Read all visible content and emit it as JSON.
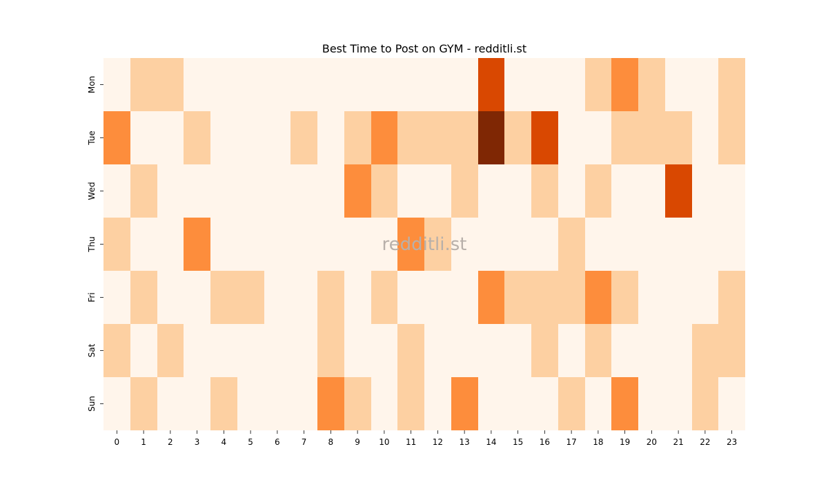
{
  "chart_data": {
    "type": "heatmap",
    "title": "Best Time to Post on GYM - redditli.st",
    "watermark": "redditli.st",
    "xlabel": "",
    "ylabel": "",
    "x": [
      "0",
      "1",
      "2",
      "3",
      "4",
      "5",
      "6",
      "7",
      "8",
      "9",
      "10",
      "11",
      "12",
      "13",
      "14",
      "15",
      "16",
      "17",
      "18",
      "19",
      "20",
      "21",
      "22",
      "23"
    ],
    "y": [
      "Mon",
      "Tue",
      "Wed",
      "Thu",
      "Fri",
      "Sat",
      "Sun"
    ],
    "values": [
      [
        0,
        1,
        1,
        0,
        0,
        0,
        0,
        0,
        0,
        0,
        0,
        0,
        0,
        0,
        3,
        0,
        0,
        0,
        1,
        2,
        1,
        0,
        0,
        1
      ],
      [
        2,
        0,
        0,
        1,
        0,
        0,
        0,
        1,
        0,
        1,
        2,
        1,
        1,
        1,
        4,
        1,
        3,
        0,
        0,
        1,
        1,
        1,
        0,
        1
      ],
      [
        0,
        1,
        0,
        0,
        0,
        0,
        0,
        0,
        0,
        2,
        1,
        0,
        0,
        1,
        0,
        0,
        1,
        0,
        1,
        0,
        0,
        3,
        0,
        0
      ],
      [
        1,
        0,
        0,
        2,
        0,
        0,
        0,
        0,
        0,
        0,
        0,
        2,
        1,
        0,
        0,
        0,
        0,
        1,
        0,
        0,
        0,
        0,
        0,
        0
      ],
      [
        0,
        1,
        0,
        0,
        1,
        1,
        0,
        0,
        1,
        0,
        1,
        0,
        0,
        0,
        2,
        1,
        1,
        1,
        2,
        1,
        0,
        0,
        0,
        1
      ],
      [
        1,
        0,
        1,
        0,
        0,
        0,
        0,
        0,
        1,
        0,
        0,
        1,
        0,
        0,
        0,
        0,
        1,
        0,
        1,
        0,
        0,
        0,
        1,
        1
      ],
      [
        0,
        1,
        0,
        0,
        1,
        0,
        0,
        0,
        2,
        1,
        0,
        1,
        0,
        2,
        0,
        0,
        0,
        1,
        0,
        2,
        0,
        0,
        1,
        0
      ]
    ],
    "value_range": [
      0,
      4
    ],
    "colormap": [
      "#fff5eb",
      "#fdd0a2",
      "#fd8d3c",
      "#d94801",
      "#7f2704"
    ],
    "grid": false,
    "colorbar": false
  }
}
